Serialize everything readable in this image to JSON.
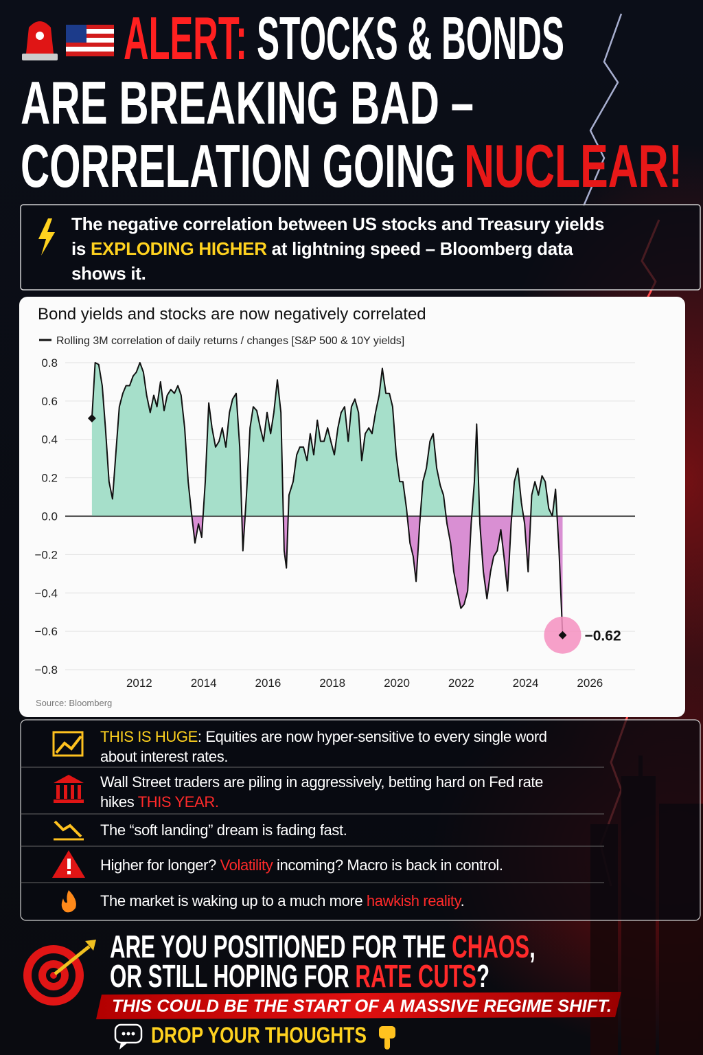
{
  "header": {
    "title": [
      "ALERT:",
      "STOCKS & BONDS",
      "ARE BREAKING BAD –",
      "CORRELATION GOING",
      "NUCLEAR!"
    ]
  },
  "callout": [
    "The negative correlation between US stocks and Treasury yields is ",
    "EXPLODING HIGHER",
    " at lightning speed – Bloomberg data shows it."
  ],
  "chart_data": {
    "type": "line",
    "title": "Bond yields and stocks are now negatively correlated",
    "source": "Source: Bloomberg",
    "x": [
      2010.53,
      2010.63,
      2010.74,
      2010.85,
      2010.95,
      2011.06,
      2011.17,
      2011.27,
      2011.38,
      2011.49,
      2011.59,
      2011.7,
      2011.81,
      2011.91,
      2012.02,
      2012.13,
      2012.23,
      2012.34,
      2012.45,
      2012.55,
      2012.66,
      2012.77,
      2012.87,
      2012.98,
      2013.09,
      2013.2,
      2013.3,
      2013.41,
      2013.52,
      2013.62,
      2013.73,
      2013.84,
      2013.94,
      2014.05,
      2014.16,
      2014.26,
      2014.37,
      2014.48,
      2014.58,
      2014.69,
      2014.8,
      2014.9,
      2015.01,
      2015.12,
      2015.22,
      2015.33,
      2015.44,
      2015.54,
      2015.65,
      2015.76,
      2015.86,
      2015.97,
      2016.08,
      2016.18,
      2016.29,
      2016.4,
      2016.5,
      2016.57,
      2016.65,
      2016.78,
      2016.89,
      2016.99,
      2017.1,
      2017.21,
      2017.31,
      2017.42,
      2017.53,
      2017.63,
      2017.74,
      2017.85,
      2017.95,
      2018.06,
      2018.17,
      2018.27,
      2018.38,
      2018.49,
      2018.59,
      2018.7,
      2018.81,
      2018.91,
      2019.02,
      2019.13,
      2019.23,
      2019.34,
      2019.45,
      2019.55,
      2019.66,
      2019.77,
      2019.87,
      2019.98,
      2020.09,
      2020.19,
      2020.3,
      2020.41,
      2020.51,
      2020.6,
      2020.71,
      2020.81,
      2020.92,
      2021.03,
      2021.13,
      2021.24,
      2021.35,
      2021.45,
      2021.56,
      2021.67,
      2021.77,
      2021.88,
      2021.99,
      2022.09,
      2022.2,
      2022.31,
      2022.41,
      2022.48,
      2022.58,
      2022.69,
      2022.8,
      2022.91,
      2023.01,
      2023.12,
      2023.23,
      2023.33,
      2023.44,
      2023.55,
      2023.65,
      2023.76,
      2023.87,
      2023.97,
      2024.08,
      2024.19,
      2024.29,
      2024.4,
      2024.51,
      2024.61,
      2024.72,
      2024.83,
      2024.93,
      2025.04,
      2025.15
    ],
    "series": [
      {
        "name": "Rolling 3M correlation of daily returns / changes [S&P 500 & 10Y yields]",
        "color": "#111111",
        "values": [
          0.51,
          0.8,
          0.79,
          0.68,
          0.46,
          0.18,
          0.09,
          0.32,
          0.57,
          0.64,
          0.68,
          0.68,
          0.73,
          0.75,
          0.8,
          0.75,
          0.63,
          0.54,
          0.63,
          0.57,
          0.7,
          0.55,
          0.63,
          0.66,
          0.64,
          0.68,
          0.63,
          0.46,
          0.18,
          0.02,
          -0.14,
          -0.04,
          -0.11,
          0.18,
          0.59,
          0.46,
          0.36,
          0.39,
          0.46,
          0.36,
          0.54,
          0.61,
          0.64,
          0.36,
          -0.18,
          0.11,
          0.46,
          0.57,
          0.55,
          0.46,
          0.39,
          0.54,
          0.43,
          0.54,
          0.71,
          0.54,
          -0.18,
          -0.27,
          0.11,
          0.18,
          0.32,
          0.36,
          0.36,
          0.29,
          0.43,
          0.32,
          0.5,
          0.39,
          0.39,
          0.46,
          0.39,
          0.32,
          0.46,
          0.54,
          0.57,
          0.39,
          0.57,
          0.61,
          0.54,
          0.29,
          0.43,
          0.46,
          0.43,
          0.54,
          0.63,
          0.77,
          0.64,
          0.64,
          0.57,
          0.32,
          0.18,
          0.18,
          0.04,
          -0.14,
          -0.21,
          -0.34,
          -0.04,
          0.18,
          0.25,
          0.39,
          0.43,
          0.25,
          0.16,
          0.11,
          -0.04,
          -0.14,
          -0.29,
          -0.39,
          -0.48,
          -0.46,
          -0.39,
          -0.04,
          0.18,
          0.48,
          -0.04,
          -0.29,
          -0.43,
          -0.29,
          -0.21,
          -0.18,
          -0.07,
          -0.21,
          -0.39,
          -0.04,
          0.18,
          0.25,
          0.07,
          -0.04,
          -0.29,
          0.11,
          0.18,
          0.11,
          0.21,
          0.18,
          0.04,
          0.0,
          0.14,
          -0.18,
          -0.62
        ]
      }
    ],
    "positive_color": "#a6dfca",
    "negative_color": "#d98fd3",
    "xlim": [
      2009.7,
      2027.4
    ],
    "ylim": [
      -0.85,
      0.85
    ],
    "xticks": [
      2012,
      2014,
      2016,
      2018,
      2020,
      2022,
      2024,
      2026
    ],
    "yticks": [
      0.8,
      0.6,
      0.4,
      0.2,
      {
        "value": 0,
        "label": "0.0"
      },
      {
        "value": -0.2,
        "label": "−0.2"
      },
      {
        "value": -0.4,
        "label": "−0.4"
      },
      {
        "value": -0.6,
        "label": "−0.6"
      },
      {
        "value": -0.8,
        "label": "−0.8"
      }
    ],
    "grid": true,
    "annotations": [
      {
        "label": "−0.62",
        "x": 2025.15,
        "y": -0.62
      }
    ]
  },
  "bullets": [
    [
      "THIS IS HUGE",
      ": Equities are now hyper-sensitive to every single word about interest rates."
    ],
    [
      "Wall Street traders are piling in aggressively, betting hard on Fed rate hikes ",
      "THIS YEAR."
    ],
    [
      "The “soft landing” dream is fading fast."
    ],
    [
      "Higher for longer? ",
      "Volatility",
      " incoming? Macro is back in control."
    ],
    [
      "The market is waking up to a much more ",
      "hawkish reality",
      "."
    ]
  ],
  "cta": {
    "question": [
      [
        "ARE YOU POSITIONED FOR THE ",
        "CHAOS",
        ","
      ],
      [
        "OR STILL HOPING FOR ",
        "RATE CUTS",
        "?"
      ]
    ],
    "banner": "THIS COULD BE THE START OF A MASSIVE REGIME SHIFT.",
    "prompt": "DROP YOUR THOUGHTS"
  }
}
